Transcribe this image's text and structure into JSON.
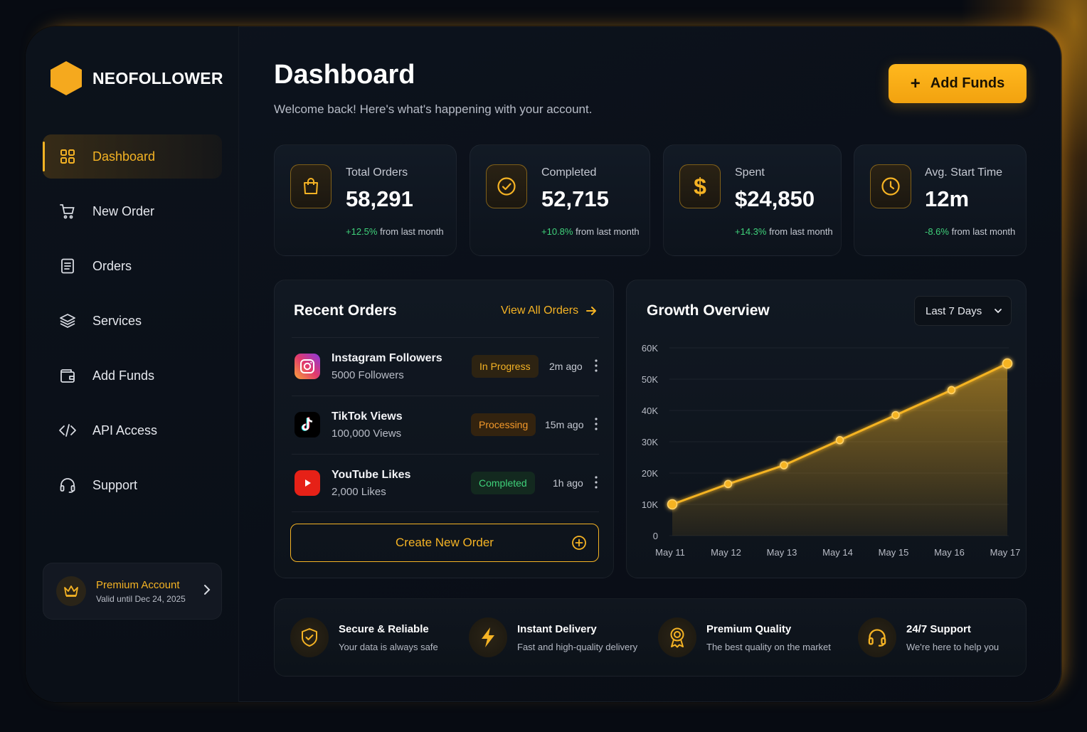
{
  "brand": {
    "name": "NEOFOLLOWER"
  },
  "sidebar": {
    "items": [
      {
        "label": "Dashboard",
        "icon": "grid-icon",
        "active": true
      },
      {
        "label": "New Order",
        "icon": "cart-icon"
      },
      {
        "label": "Orders",
        "icon": "document-icon"
      },
      {
        "label": "Services",
        "icon": "layers-icon"
      },
      {
        "label": "Add Funds",
        "icon": "wallet-icon"
      },
      {
        "label": "API Access",
        "icon": "code-icon"
      },
      {
        "label": "Support",
        "icon": "headset-icon"
      }
    ],
    "premium": {
      "title": "Premium Account",
      "subtitle": "Valid until Dec 24, 2025",
      "icon": "crown-icon"
    }
  },
  "header": {
    "title": "Dashboard",
    "subtitle": "Welcome back! Here's what's happening with your account.",
    "add_funds_icon": "+",
    "add_funds_label": "Add Funds"
  },
  "stats": [
    {
      "label": "Total Orders",
      "value": "58,291",
      "change": "+12.5%",
      "change_suffix": "from last month",
      "icon": "shopping-bag-icon"
    },
    {
      "label": "Completed",
      "value": "52,715",
      "change": "+10.8%",
      "change_suffix": "from last month",
      "icon": "check-circle-icon"
    },
    {
      "label": "Spent",
      "value": "$24,850",
      "change": "+14.3%",
      "change_suffix": "from last month",
      "icon": "dollar-icon"
    },
    {
      "label": "Avg. Start Time",
      "value": "12m",
      "change": "-8.6%",
      "change_suffix": "from last month",
      "icon": "clock-icon"
    }
  ],
  "recent_orders": {
    "title": "Recent Orders",
    "view_all": "View All Orders",
    "rows": [
      {
        "name": "Instagram Followers",
        "qty": "5000 Followers",
        "status": "In Progress",
        "time": "2m ago",
        "icon": "instagram-icon"
      },
      {
        "name": "TikTok Views",
        "qty": "100,000 Views",
        "status": "Processing",
        "time": "15m ago",
        "icon": "tiktok-icon"
      },
      {
        "name": "YouTube Likes",
        "qty": "2,000 Likes",
        "status": "Completed",
        "time": "1h ago",
        "icon": "youtube-icon"
      }
    ],
    "create_label": "Create New Order"
  },
  "growth": {
    "title": "Growth Overview",
    "range": "Last 7 Days"
  },
  "chart_data": {
    "type": "area",
    "x": [
      "May 11",
      "May 12",
      "May 13",
      "May 14",
      "May 15",
      "May 16",
      "May 17"
    ],
    "values": [
      10000,
      16500,
      22500,
      30500,
      38500,
      46500,
      55000
    ],
    "ylim": [
      0,
      60000
    ],
    "yticks": [
      "0",
      "10K",
      "20K",
      "30K",
      "40K",
      "50K",
      "60K"
    ],
    "grid": true,
    "color": "#f5b324"
  },
  "features": [
    {
      "title": "Secure & Reliable",
      "sub": "Your data is always safe",
      "icon": "shield-icon"
    },
    {
      "title": "Instant Delivery",
      "sub": "Fast and high-quality delivery",
      "icon": "lightning-icon"
    },
    {
      "title": "Premium Quality",
      "sub": "The best quality on the market",
      "icon": "award-icon"
    },
    {
      "title": "24/7 Support",
      "sub": "We're here to help you",
      "icon": "headset-icon"
    }
  ],
  "colors": {
    "accent": "#f5b324",
    "positive": "#3fd17a",
    "background": "#070b12"
  }
}
